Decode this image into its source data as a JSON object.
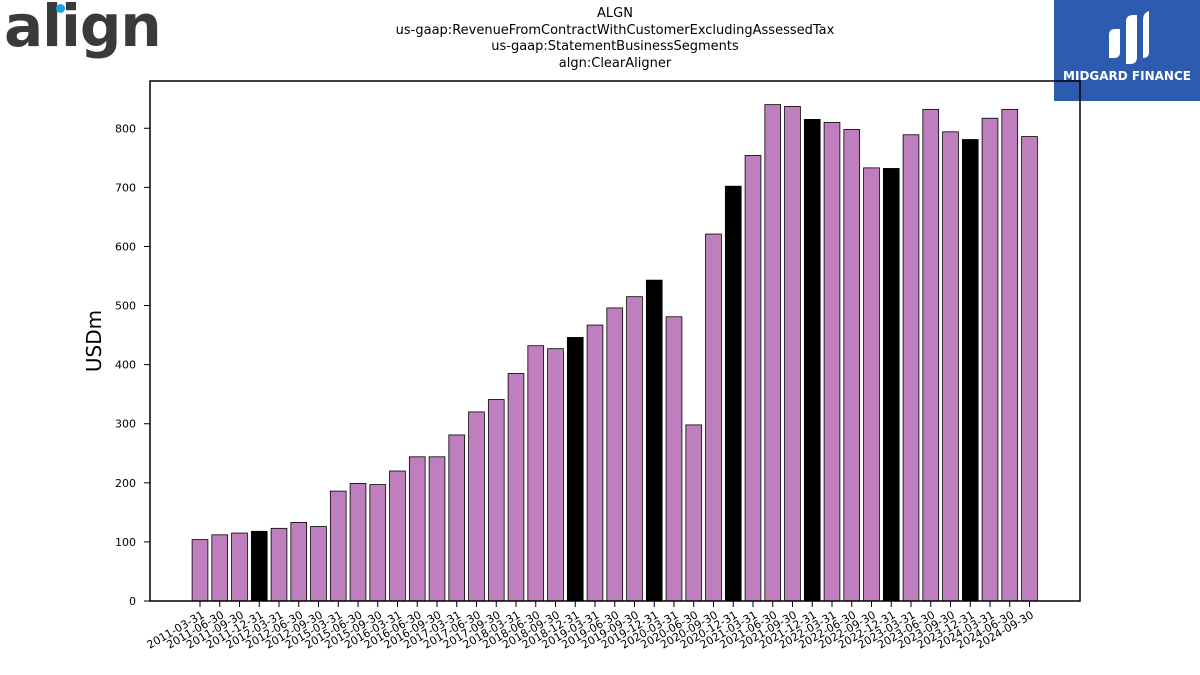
{
  "logos": {
    "left_text": "align",
    "right_text": "MIDGARD FINANCE"
  },
  "chart_data": {
    "type": "bar",
    "title_lines": [
      "ALGN",
      "us-gaap:RevenueFromContractWithCustomerExcludingAssessedTax",
      "us-gaap:StatementBusinessSegments",
      "algn:ClearAligner"
    ],
    "ylabel": "USDm",
    "xlabel": "",
    "ylim": [
      0,
      880
    ],
    "yticks": [
      0,
      100,
      200,
      300,
      400,
      500,
      600,
      700,
      800
    ],
    "grid": false,
    "colors": {
      "regular": "#bf7fbf",
      "highlight": "#000000"
    },
    "categories": [
      "2011-03-31",
      "2011-06-30",
      "2011-09-30",
      "2011-12-31",
      "2012-03-31",
      "2012-06-30",
      "2012-09-30",
      "2015-03-31",
      "2015-06-30",
      "2015-09-30",
      "2016-03-31",
      "2016-06-30",
      "2016-09-30",
      "2017-03-31",
      "2017-06-30",
      "2017-09-30",
      "2018-03-31",
      "2018-06-30",
      "2018-09-30",
      "2018-12-31",
      "2019-03-31",
      "2019-06-30",
      "2019-09-30",
      "2019-12-31",
      "2020-03-31",
      "2020-06-30",
      "2020-09-30",
      "2020-12-31",
      "2021-03-31",
      "2021-06-30",
      "2021-09-30",
      "2021-12-31",
      "2022-03-31",
      "2022-06-30",
      "2022-09-30",
      "2022-12-31",
      "2023-03-31",
      "2023-06-30",
      "2023-09-30",
      "2023-12-31",
      "2024-03-31",
      "2024-06-30",
      "2024-09-30"
    ],
    "values": [
      104,
      112,
      115,
      118,
      123,
      133,
      126,
      186,
      199,
      197,
      220,
      244,
      244,
      281,
      320,
      341,
      385,
      432,
      427,
      446,
      467,
      496,
      515,
      543,
      481,
      298,
      621,
      702,
      754,
      840,
      837,
      815,
      810,
      798,
      733,
      732,
      789,
      832,
      794,
      781,
      817,
      832,
      786
    ],
    "highlight": [
      false,
      false,
      false,
      true,
      false,
      false,
      false,
      false,
      false,
      false,
      false,
      false,
      false,
      false,
      false,
      false,
      false,
      false,
      false,
      true,
      false,
      false,
      false,
      true,
      false,
      false,
      false,
      true,
      false,
      false,
      false,
      true,
      false,
      false,
      false,
      true,
      false,
      false,
      false,
      true,
      false,
      false,
      false
    ]
  }
}
